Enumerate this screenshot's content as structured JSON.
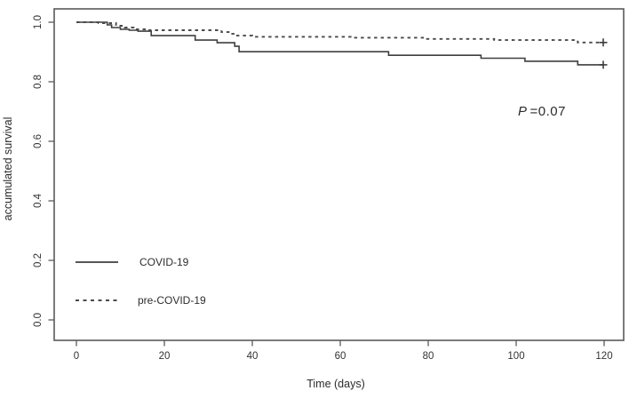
{
  "figure": {
    "background": "#ffffff",
    "p_annotation": {
      "symbol": "P",
      "rest": "=0.07"
    }
  },
  "chart_data": {
    "type": "line",
    "subtype": "kaplan_meier_step_survival",
    "title": "",
    "xlabel": "Time (days)",
    "ylabel": "accumulated survival",
    "xlim": [
      -5,
      124
    ],
    "ylim": [
      -0.07,
      1.045
    ],
    "x_ticks": [
      0,
      20,
      40,
      60,
      80,
      100,
      120
    ],
    "y_ticks": [
      1.0,
      0.8,
      0.6,
      0.4,
      0.2,
      0.0
    ],
    "y_tick_labels": [
      "1.0",
      "0.8",
      "0.6",
      "0.4",
      "0.2",
      "0.0"
    ],
    "grid": false,
    "legend_position": "inside-lower-left",
    "annotation_text": "P =0.07",
    "colors": {
      "solid_line": "#3f3f3f",
      "dashed_line": "#4a4a4a",
      "axis": "#5a5a5a"
    },
    "series": [
      {
        "name": "COVID-19",
        "line_style": "solid",
        "color": "#3f3f3f",
        "steps": [
          [
            0,
            1.0
          ],
          [
            7,
            0.991
          ],
          [
            8,
            0.982
          ],
          [
            10,
            0.976
          ],
          [
            12,
            0.973
          ],
          [
            14,
            0.97
          ],
          [
            17,
            0.955
          ],
          [
            27,
            0.94
          ],
          [
            32,
            0.931
          ],
          [
            36,
            0.919
          ],
          [
            37,
            0.901
          ],
          [
            71,
            0.889
          ],
          [
            92,
            0.879
          ],
          [
            102,
            0.869
          ],
          [
            114,
            0.857
          ],
          [
            120,
            0.857
          ]
        ],
        "censor_marks": [
          [
            119.8,
            0.857
          ]
        ]
      },
      {
        "name": "pre-COVID-19",
        "line_style": "dashed",
        "color": "#4a4a4a",
        "steps": [
          [
            0,
            1.0
          ],
          [
            5,
            0.997
          ],
          [
            9,
            0.988
          ],
          [
            11,
            0.982
          ],
          [
            13,
            0.976
          ],
          [
            16,
            0.973
          ],
          [
            33,
            0.967
          ],
          [
            35,
            0.961
          ],
          [
            36,
            0.955
          ],
          [
            40,
            0.951
          ],
          [
            63,
            0.948
          ],
          [
            79,
            0.944
          ],
          [
            95,
            0.94
          ],
          [
            114,
            0.932
          ],
          [
            120,
            0.932
          ]
        ],
        "censor_marks": [
          [
            119.8,
            0.932
          ]
        ]
      }
    ]
  }
}
